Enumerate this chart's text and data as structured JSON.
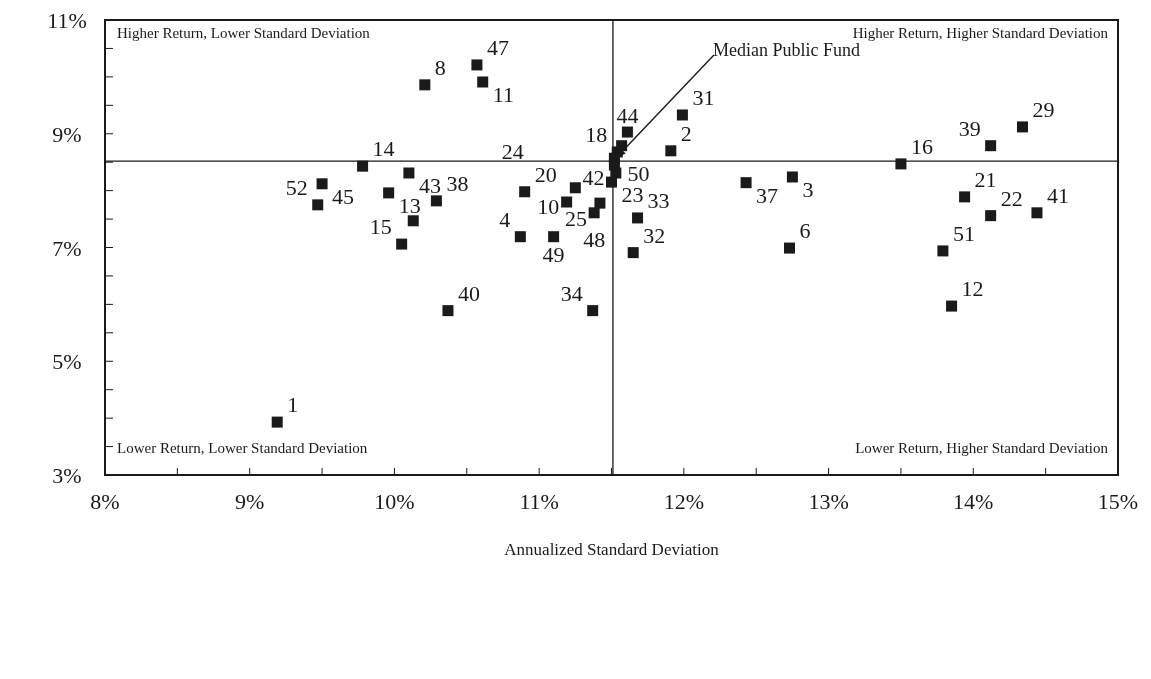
{
  "chart_data": {
    "type": "scatter",
    "xlabel": "Annualized Standard Deviation",
    "marker": "square",
    "grid": false,
    "xlim": [
      8,
      15
    ],
    "ylim": [
      3,
      11
    ],
    "xticks": [
      {
        "value": 8,
        "label": "8%"
      },
      {
        "value": 8.5,
        "label": null
      },
      {
        "value": 9,
        "label": "9%"
      },
      {
        "value": 9.5,
        "label": null
      },
      {
        "value": 10,
        "label": "10%"
      },
      {
        "value": 10.5,
        "label": null
      },
      {
        "value": 11,
        "label": "11%"
      },
      {
        "value": 11.5,
        "label": null
      },
      {
        "value": 12,
        "label": "12%"
      },
      {
        "value": 12.5,
        "label": null
      },
      {
        "value": 13,
        "label": "13%"
      },
      {
        "value": 13.5,
        "label": null
      },
      {
        "value": 14,
        "label": "14%"
      },
      {
        "value": 14.5,
        "label": null
      },
      {
        "value": 15,
        "label": "15%"
      }
    ],
    "yticks": [
      {
        "value": 3,
        "label": "3%"
      },
      {
        "value": 3.5,
        "label": null
      },
      {
        "value": 4,
        "label": null
      },
      {
        "value": 4.5,
        "label": null
      },
      {
        "value": 5,
        "label": "5%"
      },
      {
        "value": 5.5,
        "label": null
      },
      {
        "value": 6,
        "label": null
      },
      {
        "value": 6.5,
        "label": null
      },
      {
        "value": 7,
        "label": "7%"
      },
      {
        "value": 7.5,
        "label": null
      },
      {
        "value": 8,
        "label": null
      },
      {
        "value": 8.5,
        "label": null
      },
      {
        "value": 9,
        "label": "9%"
      },
      {
        "value": 9.5,
        "label": null
      },
      {
        "value": 10,
        "label": null
      },
      {
        "value": 10.5,
        "label": null
      },
      {
        "value": 11,
        "label": "11%"
      }
    ],
    "series": [
      {
        "color": "#1a1a1a",
        "x": [
          9.19,
          10.21,
          10.57,
          10.61,
          9.78,
          9.5,
          9.47,
          9.96,
          10.1,
          10.29,
          10.13,
          10.05,
          10.37,
          11.61,
          11.99,
          11.91,
          11.57,
          11.54,
          11.52,
          11.52,
          11.53,
          11.5,
          11.25,
          10.9,
          11.19,
          11.42,
          11.38,
          10.87,
          11.1,
          11.68,
          11.65,
          11.37,
          12.43,
          12.75,
          12.73,
          14.34,
          14.12,
          13.5,
          13.94,
          14.12,
          14.44,
          13.79,
          13.85
        ],
        "values": [
          3.93,
          9.86,
          10.21,
          9.91,
          8.43,
          8.12,
          7.75,
          7.96,
          8.31,
          7.82,
          7.47,
          7.06,
          5.89,
          9.03,
          9.33,
          8.7,
          8.79,
          8.68,
          8.57,
          8.45,
          8.31,
          8.15,
          8.05,
          7.98,
          7.8,
          7.78,
          7.61,
          7.19,
          7.19,
          7.52,
          6.91,
          5.89,
          8.14,
          8.24,
          6.99,
          9.12,
          8.79,
          8.47,
          7.89,
          7.56,
          7.61,
          6.94,
          5.97
        ]
      }
    ],
    "ref_lines": [
      {
        "axis": "x",
        "value": 11.51
      },
      {
        "axis": "y",
        "value": 8.52
      }
    ],
    "annotations": [
      "Higher Return, Lower Standard Deviation",
      "Higher Return, Higher Standard Deviation",
      "Lower Return, Lower Standard Deviation",
      "Lower Return, Higher Standard Deviation",
      "Median Public Fund",
      {
        "text": "1",
        "x": 9.19,
        "y": 3.93
      },
      {
        "text": "8",
        "x": 10.21,
        "y": 9.86
      },
      {
        "text": "47",
        "x": 10.57,
        "y": 10.21
      },
      {
        "text": "11",
        "x": 10.61,
        "y": 9.91
      },
      {
        "text": "14",
        "x": 9.78,
        "y": 8.43
      },
      {
        "text": "45",
        "x": 9.5,
        "y": 8.12
      },
      {
        "text": "52",
        "x": 9.47,
        "y": 7.75
      },
      {
        "text": "13",
        "x": 9.96,
        "y": 7.96
      },
      {
        "text": "43",
        "x": 10.1,
        "y": 8.31
      },
      {
        "text": "38",
        "x": 10.29,
        "y": 7.82
      },
      {
        "text": "15",
        "x": 10.05,
        "y": 7.06
      },
      {
        "text": "40",
        "x": 10.37,
        "y": 5.89
      },
      {
        "text": "44",
        "x": 11.61,
        "y": 9.03
      },
      {
        "text": "31",
        "x": 11.99,
        "y": 9.33
      },
      {
        "text": "2",
        "x": 11.91,
        "y": 8.7
      },
      {
        "text": "18",
        "x": 11.54,
        "y": 8.68
      },
      {
        "text": "50",
        "x": 11.52,
        "y": 8.57
      },
      {
        "text": "42",
        "x": 11.52,
        "y": 8.45
      },
      {
        "text": "23",
        "x": 11.5,
        "y": 8.15
      },
      {
        "text": "10",
        "x": 11.25,
        "y": 8.05
      },
      {
        "text": "20",
        "x": 10.9,
        "y": 7.98
      },
      {
        "text": "24",
        "x": 11.19,
        "y": 7.8
      },
      {
        "text": "25",
        "x": 11.42,
        "y": 7.78
      },
      {
        "text": "48",
        "x": 11.38,
        "y": 7.61
      },
      {
        "text": "4",
        "x": 10.87,
        "y": 7.19
      },
      {
        "text": "49",
        "x": 11.1,
        "y": 7.19
      },
      {
        "text": "33",
        "x": 11.68,
        "y": 7.52
      },
      {
        "text": "32",
        "x": 11.65,
        "y": 6.91
      },
      {
        "text": "34",
        "x": 11.37,
        "y": 5.89
      },
      {
        "text": "37",
        "x": 12.43,
        "y": 8.14
      },
      {
        "text": "3",
        "x": 12.75,
        "y": 8.24
      },
      {
        "text": "6",
        "x": 12.73,
        "y": 6.99
      },
      {
        "text": "29",
        "x": 14.34,
        "y": 9.12
      },
      {
        "text": "39",
        "x": 14.12,
        "y": 8.79
      },
      {
        "text": "16",
        "x": 13.5,
        "y": 8.47
      },
      {
        "text": "21",
        "x": 13.94,
        "y": 7.89
      },
      {
        "text": "22",
        "x": 14.12,
        "y": 7.56
      },
      {
        "text": "41",
        "x": 14.44,
        "y": 7.61
      },
      {
        "text": "51",
        "x": 13.79,
        "y": 6.94
      },
      {
        "text": "12",
        "x": 13.85,
        "y": 5.97
      }
    ]
  }
}
